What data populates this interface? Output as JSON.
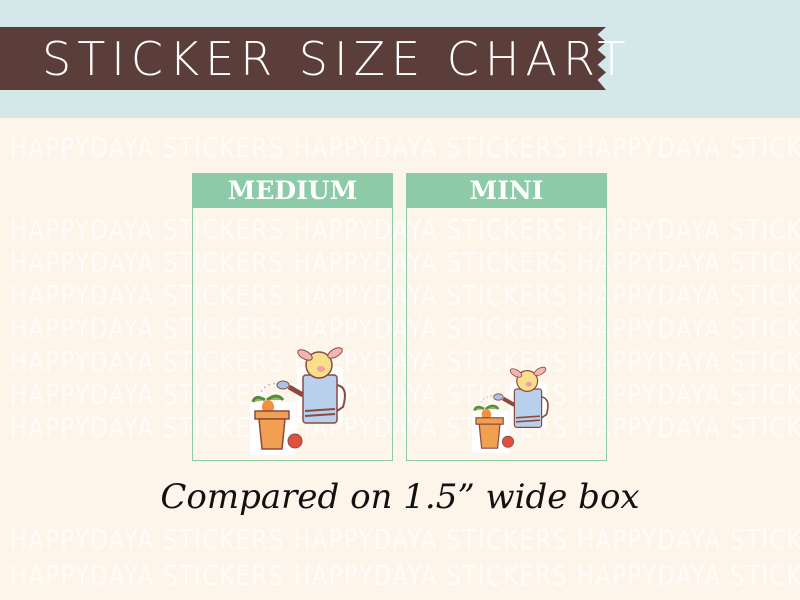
{
  "banner": {
    "title": "STICKER SIZE CHART"
  },
  "watermark": {
    "text": "HAPPYDAYA STICKERS"
  },
  "boxes": [
    {
      "label": "MEDIUM"
    },
    {
      "label": "MINI"
    }
  ],
  "caption": "Compared on 1.5” wide box",
  "colors": {
    "banner": "#5b3d39",
    "top_band": "#d4e8ea",
    "background": "#fdf4ea",
    "box_accent": "#8dcaa8"
  }
}
